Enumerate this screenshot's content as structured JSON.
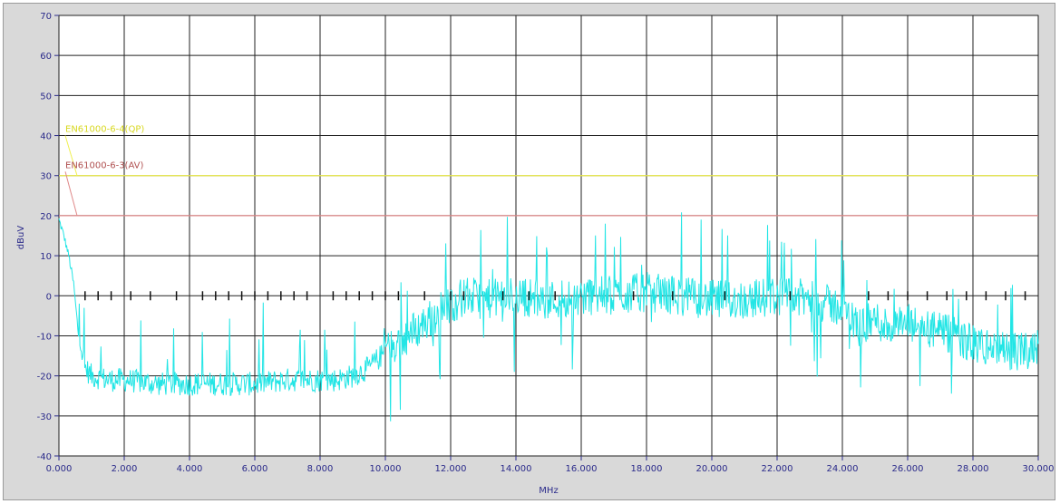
{
  "chart_data": {
    "type": "line",
    "xlabel": "MHz",
    "ylabel": "dBuV",
    "xlim": [
      0,
      30
    ],
    "ylim": [
      -40,
      70
    ],
    "x_ticks": [
      "0.000",
      "2.000",
      "4.000",
      "6.000",
      "8.000",
      "10.000",
      "12.000",
      "14.000",
      "16.000",
      "18.000",
      "20.000",
      "22.000",
      "24.000",
      "26.000",
      "28.000",
      "30.000"
    ],
    "y_ticks": [
      70,
      60,
      50,
      40,
      30,
      20,
      10,
      0,
      -10,
      -20,
      -30,
      -40
    ],
    "grid": true,
    "limit_lines": [
      {
        "label": "EN61000-6-4(QP)",
        "y": 30,
        "color": "#f0f050"
      },
      {
        "label": "EN61000-6-3(AV)",
        "y": 20,
        "color": "#e08a8a"
      }
    ],
    "series": [
      {
        "color": "#22e5e5",
        "x": [
          0.0,
          0.15,
          0.3,
          0.45,
          0.6,
          0.8,
          1.0,
          1.5,
          2.0,
          3.0,
          4.0,
          5.0,
          6.0,
          7.0,
          8.0,
          8.5,
          9.0,
          9.5,
          10.0,
          10.5,
          11.0,
          11.5,
          12.0,
          12.5,
          13.0,
          14.0,
          15.0,
          16.0,
          17.0,
          18.0,
          19.0,
          20.0,
          21.0,
          22.0,
          23.0,
          24.0,
          24.5,
          25.0,
          25.5,
          26.0,
          27.0,
          28.0,
          29.0,
          29.5,
          30.0
        ],
        "values": [
          19,
          15,
          10,
          3,
          -10,
          -18,
          -20,
          -21,
          -21,
          -22,
          -22,
          -22,
          -22,
          -21,
          -21,
          -21,
          -20,
          -18,
          -14,
          -11,
          -8,
          -5,
          -2,
          0,
          -1,
          0,
          -1,
          0,
          0,
          1,
          0,
          -1,
          -1,
          0,
          -1,
          -3,
          -8,
          -6,
          -8,
          -7,
          -9,
          -12,
          -14,
          -14,
          -12
        ]
      }
    ],
    "markers": {
      "symbol": "|",
      "y": 0,
      "x": [
        0.8,
        1.2,
        1.6,
        2.2,
        2.8,
        3.6,
        4.4,
        4.8,
        5.2,
        5.6,
        6.0,
        6.4,
        6.8,
        7.2,
        7.6,
        8.4,
        8.8,
        9.2,
        9.6,
        10.0,
        10.4,
        11.2,
        12.0,
        12.4,
        13.6,
        14.4,
        15.2,
        17.6,
        18.8,
        20.4,
        22.4,
        24.8,
        25.4,
        26.0,
        26.6,
        27.2,
        27.8,
        28.4,
        29.0,
        29.6
      ]
    }
  }
}
